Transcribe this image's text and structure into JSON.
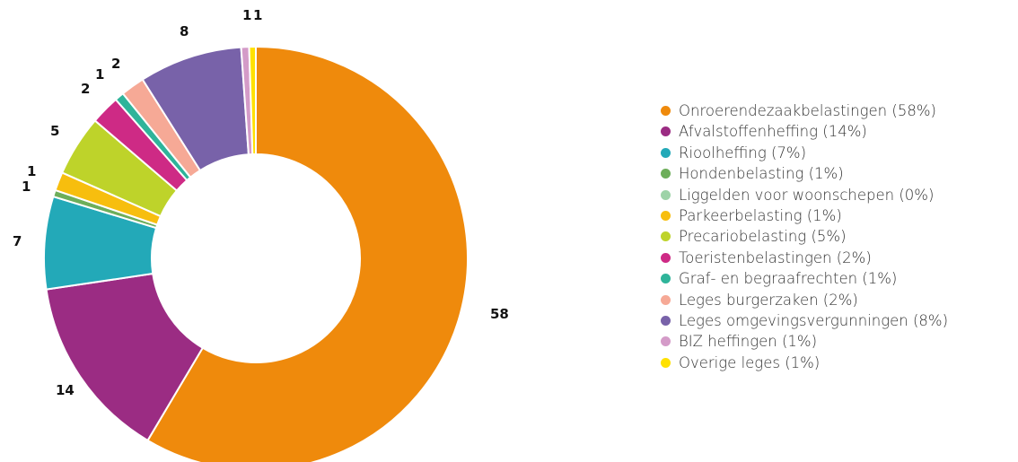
{
  "chart_data": {
    "type": "pie",
    "donut": true,
    "title": "",
    "legend_position": "right",
    "series": [
      {
        "name": "Onroerendezaakbelastingen",
        "label": "58",
        "legend": "Onroerendezaakbelastingen (58%)",
        "value": 58,
        "color": "#EF8A0C"
      },
      {
        "name": "Afvalstoffenheffing",
        "label": "14",
        "legend": "Afvalstoffenheffing (14%)",
        "value": 14,
        "color": "#9B2C83"
      },
      {
        "name": "Rioolheffing",
        "label": "7",
        "legend": "Rioolheffing (7%)",
        "value": 7,
        "color": "#23A9B8"
      },
      {
        "name": "Hondenbelasting",
        "label": "1",
        "legend": "Hondenbelasting (1%)",
        "value": 0.5,
        "color": "#6DAE5A"
      },
      {
        "name": "Liggelden voor woonschepen",
        "label": "",
        "legend": "Liggelden voor woonschepen (0%)",
        "value": 0,
        "color": "#9ED3A8"
      },
      {
        "name": "Parkeerbelasting",
        "label": "1",
        "legend": "Parkeerbelasting (1%)",
        "value": 1.4,
        "color": "#F7BE0E"
      },
      {
        "name": "Precariobelasting",
        "label": "5",
        "legend": "Precariobelasting (5%)",
        "value": 4.6,
        "color": "#BED32A"
      },
      {
        "name": "Toeristenbelastingen",
        "label": "2",
        "legend": "Toeristenbelastingen (2%)",
        "value": 2.2,
        "color": "#CE2A85"
      },
      {
        "name": "Graf- en begraafrechten",
        "label": "1",
        "legend": "Graf- en begraafrechten (1%)",
        "value": 0.7,
        "color": "#2FB49A"
      },
      {
        "name": "Leges burgerzaken",
        "label": "2",
        "legend": "Leges burgerzaken (2%)",
        "value": 1.8,
        "color": "#F6A996"
      },
      {
        "name": "Leges omgevingsvergunningen",
        "label": "8",
        "legend": "Leges omgevingsvergunningen (8%)",
        "value": 7.8,
        "color": "#7862A9"
      },
      {
        "name": "BIZ heffingen",
        "label": "1",
        "legend": "BIZ heffingen (1%)",
        "value": 0.6,
        "color": "#D49BC8"
      },
      {
        "name": "Overige leges",
        "label": "1",
        "legend": "Overige leges (1%)",
        "value": 0.5,
        "color": "#FFE100"
      }
    ]
  }
}
